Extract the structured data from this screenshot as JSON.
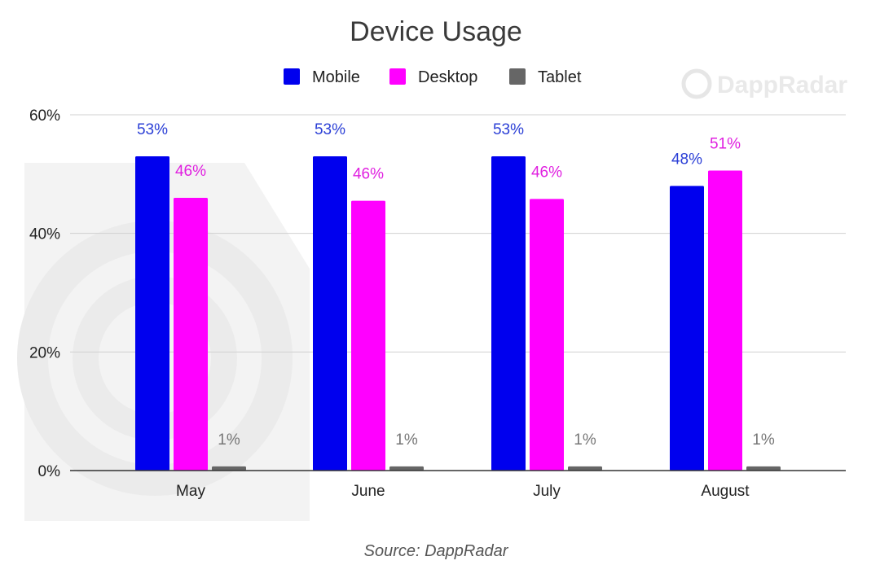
{
  "chart_data": {
    "type": "bar",
    "title": "Device Usage",
    "categories": [
      "May",
      "June",
      "July",
      "August"
    ],
    "series": [
      {
        "name": "Mobile",
        "color": "#0000ee",
        "values": [
          53,
          53,
          53,
          48
        ],
        "labels": [
          "53%",
          "53%",
          "53%",
          "48%"
        ]
      },
      {
        "name": "Desktop",
        "color": "#ff00ff",
        "values": [
          46,
          45.5,
          45.8,
          50.6
        ],
        "labels": [
          "46%",
          "46%",
          "46%",
          "51%"
        ]
      },
      {
        "name": "Tablet",
        "color": "#666666",
        "values": [
          0.7,
          0.7,
          0.7,
          0.7
        ],
        "labels": [
          "1%",
          "1%",
          "1%",
          "1%"
        ]
      }
    ],
    "label_colors": [
      "#2b3fd6",
      "#e020e0",
      "#777777"
    ],
    "y_ticks": [
      "0%",
      "20%",
      "40%",
      "60%"
    ],
    "ylim": [
      0,
      60
    ],
    "grid": true,
    "legend_position": "top"
  },
  "watermark": "DappRadar",
  "source": "Source: DappRadar"
}
